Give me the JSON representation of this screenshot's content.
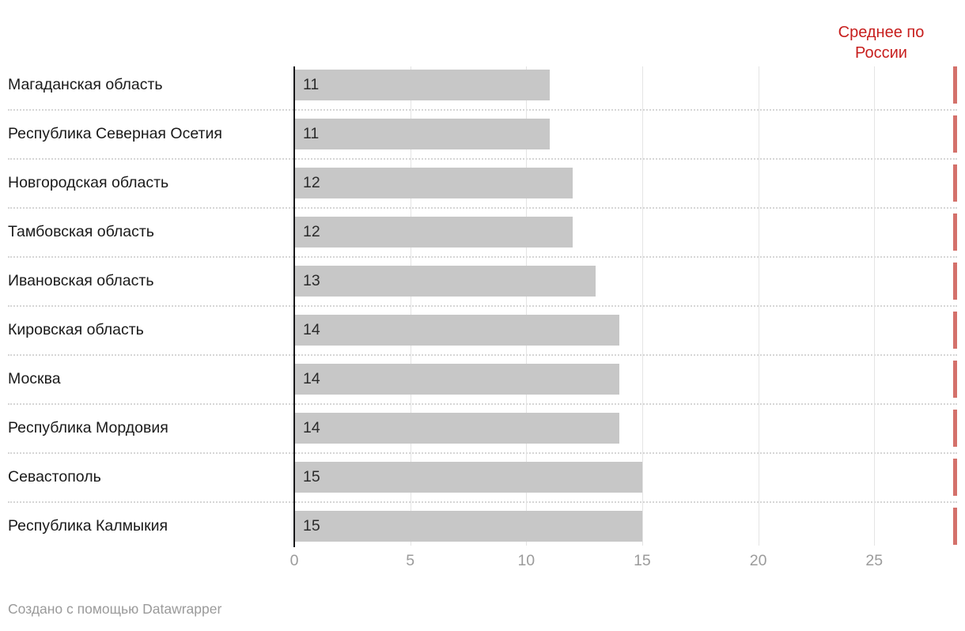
{
  "annotation": {
    "line1": "Среднее по",
    "line2": "России"
  },
  "footer": {
    "text": "Создано с помощью Datawrapper"
  },
  "colors": {
    "bar_gray": "#c7c7c7",
    "accent_red_text": "#c71e1d",
    "accent_red_tick": "#d4716b",
    "axis_black": "#18181a",
    "tick_label_gray": "#9b9b9b",
    "gridline_gray": "#e4e4e4",
    "separator_gray": "#d6d6d6"
  },
  "chart_data": {
    "type": "bar",
    "orientation": "horizontal",
    "title": "",
    "xlabel": "",
    "ylabel": "",
    "categories": [
      "Магаданская область",
      "Республика Северная Осетия",
      "Новгородская область",
      "Тамбовская область",
      "Ивановская область",
      "Кировская область",
      "Москва",
      "Республика Мордовия",
      "Севастополь",
      "Республика Калмыкия"
    ],
    "values": [
      11,
      11,
      12,
      12,
      13,
      14,
      14,
      14,
      15,
      15
    ],
    "x_ticks": [
      0,
      5,
      10,
      15,
      20,
      25
    ],
    "xlim": [
      0,
      28.6
    ],
    "grid": "vertical-lines-on",
    "value_labels": "inside-bar-start",
    "average_marker": {
      "label": "Среднее по России",
      "value_estimate": 28.4,
      "shape": "vertical-tick-per-row"
    },
    "footnote": "Создано с помощью Datawrapper"
  }
}
